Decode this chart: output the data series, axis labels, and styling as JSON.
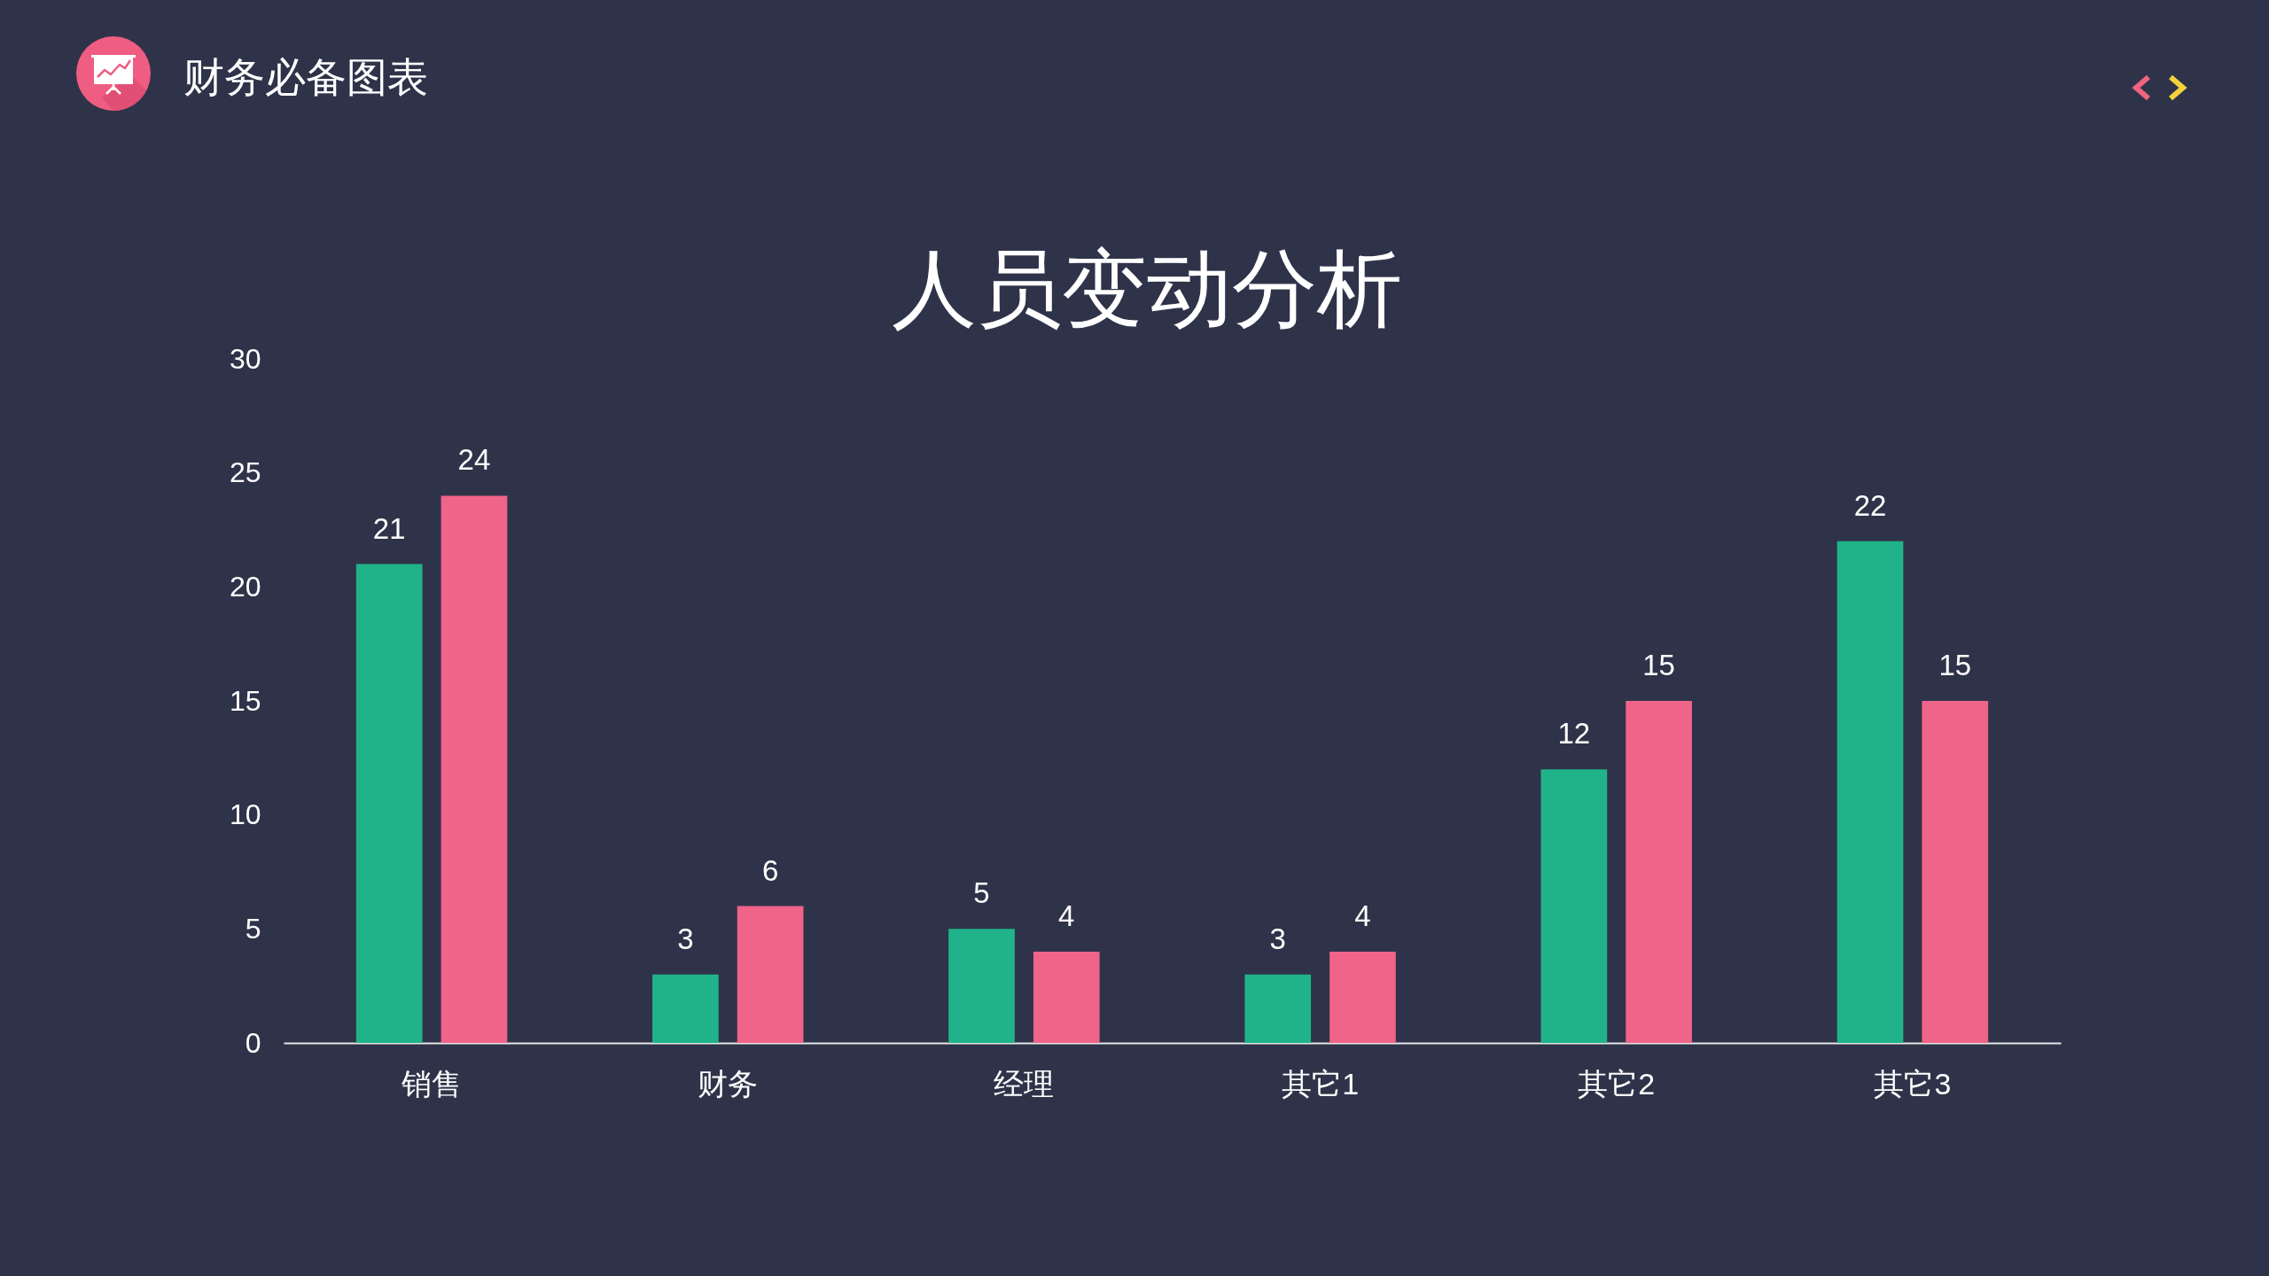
{
  "chart_data": {
    "type": "bar",
    "title": "人员变动分析",
    "annotations": [
      "财务必备图表"
    ],
    "categories": [
      "销售",
      "财务",
      "经理",
      "其它1",
      "其它2",
      "其它3"
    ],
    "series": [
      {
        "color": "#20b389",
        "values": [
          21,
          3,
          5,
          3,
          12,
          22
        ]
      },
      {
        "color": "#f06489",
        "values": [
          24,
          6,
          4,
          4,
          15,
          15
        ]
      }
    ],
    "ylim": [
      0,
      30
    ],
    "yticks": [
      0,
      5,
      10,
      15,
      20,
      25,
      30
    ],
    "grid": false,
    "legend": false,
    "data_labels": true
  }
}
